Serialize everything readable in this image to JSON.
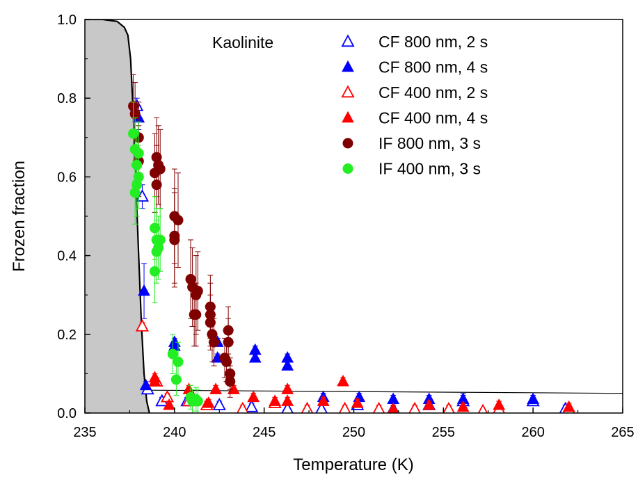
{
  "chart_data": {
    "type": "scatter",
    "xlabel": "Temperature (K)",
    "ylabel": "Frozen fraction",
    "xlim": [
      235,
      265
    ],
    "ylim": [
      0,
      1.0
    ],
    "x_ticks": [
      235,
      240,
      245,
      250,
      255,
      260,
      265
    ],
    "y_ticks": [
      0.0,
      0.2,
      0.4,
      0.6,
      0.8,
      1.0
    ],
    "x_tick_labels": [
      "235",
      "240",
      "245",
      "250",
      "255",
      "260",
      "265"
    ],
    "y_tick_labels": [
      "0.0",
      "0.2",
      "0.4",
      "0.6",
      "0.8",
      "1.0"
    ],
    "annotation": "Kaolinite",
    "legend_position": "top-right",
    "grid": false,
    "homogeneous_freezing_curve": {
      "x": [
        235.0,
        236.0,
        236.8,
        237.2,
        237.4,
        237.55,
        237.7,
        237.85,
        238.0,
        238.15,
        238.3,
        238.45,
        238.6
      ],
      "y": [
        1.0,
        1.0,
        0.995,
        0.98,
        0.96,
        0.9,
        0.76,
        0.58,
        0.4,
        0.23,
        0.1,
        0.03,
        0.0
      ],
      "fill_color": "#c8c8c8"
    },
    "background_line": {
      "x": [
        238.5,
        265
      ],
      "y": [
        0.058,
        0.05
      ]
    },
    "series": [
      {
        "name": "CF 800 nm, 2 s",
        "marker": "triangle-open",
        "color": "#0000ff",
        "points": [
          {
            "x": 237.9,
            "y": 0.78,
            "xerr": 0.15,
            "yerr": 0.02
          },
          {
            "x": 238.2,
            "y": 0.55,
            "xerr": 0.15,
            "yerr": 0.03
          },
          {
            "x": 238.5,
            "y": 0.06,
            "xerr": 0.15,
            "yerr": 0.01
          },
          {
            "x": 239.3,
            "y": 0.03,
            "xerr": 0.2,
            "yerr": 0.01
          },
          {
            "x": 240.7,
            "y": 0.03,
            "xerr": 0.2,
            "yerr": 0.01
          },
          {
            "x": 242.5,
            "y": 0.02,
            "xerr": 0.2,
            "yerr": 0.01
          },
          {
            "x": 244.3,
            "y": 0.015,
            "xerr": 0.2,
            "yerr": 0.01
          },
          {
            "x": 246.3,
            "y": 0.01,
            "xerr": 0.2,
            "yerr": 0.01
          },
          {
            "x": 248.2,
            "y": 0.01,
            "xerr": 0.2,
            "yerr": 0.01
          },
          {
            "x": 250.2,
            "y": 0.02,
            "xerr": 0.2,
            "yerr": 0.01
          },
          {
            "x": 252.2,
            "y": 0.01,
            "xerr": 0.2,
            "yerr": 0.01
          },
          {
            "x": 254.2,
            "y": 0.02,
            "xerr": 0.2,
            "yerr": 0.01
          },
          {
            "x": 256.1,
            "y": 0.03,
            "xerr": 0.2,
            "yerr": 0.02
          },
          {
            "x": 260.0,
            "y": 0.03,
            "xerr": 0.2,
            "yerr": 0.01
          },
          {
            "x": 261.8,
            "y": 0.01,
            "xerr": 0.2,
            "yerr": 0.01
          }
        ]
      },
      {
        "name": "CF 800 nm, 4 s",
        "marker": "triangle-filled",
        "color": "#0000ff",
        "points": [
          {
            "x": 238.0,
            "y": 0.75,
            "xerr": 0.15,
            "yerr": 0.03
          },
          {
            "x": 238.3,
            "y": 0.31,
            "xerr": 0.15,
            "yerr": 0.07
          },
          {
            "x": 238.4,
            "y": 0.07,
            "xerr": 0.15,
            "yerr": 0.01
          },
          {
            "x": 240.0,
            "y": 0.18,
            "xerr": 0.2,
            "yerr": 0.01
          },
          {
            "x": 240.0,
            "y": 0.17,
            "xerr": 0.2,
            "yerr": 0.01
          },
          {
            "x": 242.4,
            "y": 0.18,
            "xerr": 0.2,
            "yerr": 0.01
          },
          {
            "x": 242.4,
            "y": 0.14,
            "xerr": 0.2,
            "yerr": 0.01
          },
          {
            "x": 244.5,
            "y": 0.16,
            "xerr": 0.2,
            "yerr": 0.01
          },
          {
            "x": 244.5,
            "y": 0.14,
            "xerr": 0.2,
            "yerr": 0.01
          },
          {
            "x": 246.3,
            "y": 0.14,
            "xerr": 0.2,
            "yerr": 0.01
          },
          {
            "x": 246.3,
            "y": 0.12,
            "xerr": 0.2,
            "yerr": 0.01
          },
          {
            "x": 248.3,
            "y": 0.04,
            "xerr": 0.2,
            "yerr": 0.01
          },
          {
            "x": 250.3,
            "y": 0.04,
            "xerr": 0.2,
            "yerr": 0.01
          },
          {
            "x": 252.2,
            "y": 0.035,
            "xerr": 0.2,
            "yerr": 0.01
          },
          {
            "x": 254.2,
            "y": 0.035,
            "xerr": 0.2,
            "yerr": 0.01
          },
          {
            "x": 256.1,
            "y": 0.035,
            "xerr": 0.2,
            "yerr": 0.01
          },
          {
            "x": 260.0,
            "y": 0.035,
            "xerr": 0.2,
            "yerr": 0.01
          }
        ]
      },
      {
        "name": "CF 400 nm, 2 s",
        "marker": "triangle-open",
        "color": "#ff0000",
        "points": [
          {
            "x": 238.2,
            "y": 0.22,
            "xerr": 0.15,
            "yerr": 0.01
          },
          {
            "x": 239.0,
            "y": 0.08,
            "xerr": 0.2,
            "yerr": 0.01
          },
          {
            "x": 239.6,
            "y": 0.04,
            "xerr": 0.2,
            "yerr": 0.01
          },
          {
            "x": 240.8,
            "y": 0.03,
            "xerr": 0.2,
            "yerr": 0.01
          },
          {
            "x": 241.8,
            "y": 0.02,
            "xerr": 0.2,
            "yerr": 0.01
          },
          {
            "x": 243.8,
            "y": 0.01,
            "xerr": 0.2,
            "yerr": 0.01
          },
          {
            "x": 245.6,
            "y": 0.025,
            "xerr": 0.2,
            "yerr": 0.01
          },
          {
            "x": 247.4,
            "y": 0.01,
            "xerr": 0.2,
            "yerr": 0.01
          },
          {
            "x": 249.5,
            "y": 0.01,
            "xerr": 0.2,
            "yerr": 0.01
          },
          {
            "x": 251.4,
            "y": 0.01,
            "xerr": 0.2,
            "yerr": 0.01
          },
          {
            "x": 253.4,
            "y": 0.01,
            "xerr": 0.2,
            "yerr": 0.01
          },
          {
            "x": 255.3,
            "y": 0.01,
            "xerr": 0.2,
            "yerr": 0.01
          },
          {
            "x": 257.2,
            "y": 0.005,
            "xerr": 0.2,
            "yerr": 0.005
          },
          {
            "x": 258.1,
            "y": 0.01,
            "xerr": 0.2,
            "yerr": 0.01
          },
          {
            "x": 262.0,
            "y": 0.01,
            "xerr": 0.2,
            "yerr": 0.01
          }
        ]
      },
      {
        "name": "CF 400 nm, 4 s",
        "marker": "triangle-filled",
        "color": "#ff0000",
        "points": [
          {
            "x": 238.9,
            "y": 0.09,
            "xerr": 0.15,
            "yerr": 0.01
          },
          {
            "x": 238.9,
            "y": 0.08,
            "xerr": 0.15,
            "yerr": 0.01
          },
          {
            "x": 239.7,
            "y": 0.02,
            "xerr": 0.2,
            "yerr": 0.01
          },
          {
            "x": 240.8,
            "y": 0.06,
            "xerr": 0.2,
            "yerr": 0.01
          },
          {
            "x": 241.9,
            "y": 0.025,
            "xerr": 0.2,
            "yerr": 0.01
          },
          {
            "x": 242.3,
            "y": 0.06,
            "xerr": 0.2,
            "yerr": 0.01
          },
          {
            "x": 243.3,
            "y": 0.06,
            "xerr": 0.2,
            "yerr": 0.01
          },
          {
            "x": 244.4,
            "y": 0.04,
            "xerr": 0.2,
            "yerr": 0.01
          },
          {
            "x": 245.6,
            "y": 0.03,
            "xerr": 0.2,
            "yerr": 0.01
          },
          {
            "x": 246.3,
            "y": 0.06,
            "xerr": 0.2,
            "yerr": 0.01
          },
          {
            "x": 246.3,
            "y": 0.03,
            "xerr": 0.2,
            "yerr": 0.01
          },
          {
            "x": 248.3,
            "y": 0.03,
            "xerr": 0.2,
            "yerr": 0.01
          },
          {
            "x": 249.4,
            "y": 0.08,
            "xerr": 0.2,
            "yerr": 0.01
          },
          {
            "x": 250.2,
            "y": 0.025,
            "xerr": 0.2,
            "yerr": 0.01
          },
          {
            "x": 252.2,
            "y": 0.01,
            "xerr": 0.2,
            "yerr": 0.01
          },
          {
            "x": 254.2,
            "y": 0.02,
            "xerr": 0.2,
            "yerr": 0.01
          },
          {
            "x": 256.1,
            "y": 0.015,
            "xerr": 0.2,
            "yerr": 0.01
          },
          {
            "x": 258.1,
            "y": 0.02,
            "xerr": 0.2,
            "yerr": 0.01
          },
          {
            "x": 262.0,
            "y": 0.015,
            "xerr": 0.2,
            "yerr": 0.01
          }
        ]
      },
      {
        "name": "IF  800 nm, 3 s",
        "marker": "circle-filled",
        "color": "#800000",
        "points": [
          {
            "x": 237.7,
            "y": 0.78,
            "xerr": 0.2,
            "yerr": 0.08
          },
          {
            "x": 237.8,
            "y": 0.76,
            "xerr": 0.2,
            "yerr": 0.08
          },
          {
            "x": 238.0,
            "y": 0.7,
            "xerr": 0.2,
            "yerr": 0.09
          },
          {
            "x": 238.0,
            "y": 0.64,
            "xerr": 0.2,
            "yerr": 0.09
          },
          {
            "x": 238.9,
            "y": 0.61,
            "xerr": 0.25,
            "yerr": 0.1
          },
          {
            "x": 239.0,
            "y": 0.58,
            "xerr": 0.25,
            "yerr": 0.1
          },
          {
            "x": 239.0,
            "y": 0.65,
            "xerr": 0.25,
            "yerr": 0.1
          },
          {
            "x": 239.1,
            "y": 0.63,
            "xerr": 0.25,
            "yerr": 0.1
          },
          {
            "x": 239.2,
            "y": 0.62,
            "xerr": 0.25,
            "yerr": 0.1
          },
          {
            "x": 240.0,
            "y": 0.5,
            "xerr": 0.25,
            "yerr": 0.12
          },
          {
            "x": 240.0,
            "y": 0.45,
            "xerr": 0.25,
            "yerr": 0.12
          },
          {
            "x": 240.0,
            "y": 0.44,
            "xerr": 0.25,
            "yerr": 0.12
          },
          {
            "x": 240.2,
            "y": 0.49,
            "xerr": 0.25,
            "yerr": 0.12
          },
          {
            "x": 240.9,
            "y": 0.34,
            "xerr": 0.25,
            "yerr": 0.1
          },
          {
            "x": 241.0,
            "y": 0.32,
            "xerr": 0.25,
            "yerr": 0.1
          },
          {
            "x": 241.1,
            "y": 0.25,
            "xerr": 0.25,
            "yerr": 0.08
          },
          {
            "x": 241.2,
            "y": 0.25,
            "xerr": 0.25,
            "yerr": 0.08
          },
          {
            "x": 241.2,
            "y": 0.3,
            "xerr": 0.25,
            "yerr": 0.1
          },
          {
            "x": 241.3,
            "y": 0.31,
            "xerr": 0.25,
            "yerr": 0.1
          },
          {
            "x": 242.0,
            "y": 0.27,
            "xerr": 0.3,
            "yerr": 0.08
          },
          {
            "x": 242.0,
            "y": 0.25,
            "xerr": 0.3,
            "yerr": 0.08
          },
          {
            "x": 242.0,
            "y": 0.23,
            "xerr": 0.3,
            "yerr": 0.07
          },
          {
            "x": 242.1,
            "y": 0.2,
            "xerr": 0.3,
            "yerr": 0.07
          },
          {
            "x": 242.2,
            "y": 0.18,
            "xerr": 0.3,
            "yerr": 0.06
          },
          {
            "x": 242.8,
            "y": 0.14,
            "xerr": 0.3,
            "yerr": 0.05
          },
          {
            "x": 242.9,
            "y": 0.13,
            "xerr": 0.3,
            "yerr": 0.05
          },
          {
            "x": 243.0,
            "y": 0.21,
            "xerr": 0.3,
            "yerr": 0.06
          },
          {
            "x": 243.0,
            "y": 0.18,
            "xerr": 0.3,
            "yerr": 0.06
          },
          {
            "x": 243.1,
            "y": 0.1,
            "xerr": 0.3,
            "yerr": 0.04
          },
          {
            "x": 243.1,
            "y": 0.08,
            "xerr": 0.3,
            "yerr": 0.04
          }
        ]
      },
      {
        "name": "IF  400 nm, 3 s",
        "marker": "circle-filled",
        "color": "#22ee22",
        "points": [
          {
            "x": 237.7,
            "y": 0.71,
            "xerr": 0.15,
            "yerr": 0.08
          },
          {
            "x": 237.8,
            "y": 0.67,
            "xerr": 0.15,
            "yerr": 0.08
          },
          {
            "x": 237.9,
            "y": 0.63,
            "xerr": 0.15,
            "yerr": 0.08
          },
          {
            "x": 237.9,
            "y": 0.58,
            "xerr": 0.15,
            "yerr": 0.08
          },
          {
            "x": 237.8,
            "y": 0.56,
            "xerr": 0.15,
            "yerr": 0.08
          },
          {
            "x": 238.0,
            "y": 0.66,
            "xerr": 0.15,
            "yerr": 0.08
          },
          {
            "x": 238.0,
            "y": 0.6,
            "xerr": 0.15,
            "yerr": 0.08
          },
          {
            "x": 238.9,
            "y": 0.47,
            "xerr": 0.2,
            "yerr": 0.08
          },
          {
            "x": 239.0,
            "y": 0.44,
            "xerr": 0.2,
            "yerr": 0.08
          },
          {
            "x": 239.0,
            "y": 0.41,
            "xerr": 0.2,
            "yerr": 0.08
          },
          {
            "x": 238.9,
            "y": 0.36,
            "xerr": 0.2,
            "yerr": 0.08
          },
          {
            "x": 239.1,
            "y": 0.42,
            "xerr": 0.2,
            "yerr": 0.08
          },
          {
            "x": 239.2,
            "y": 0.44,
            "xerr": 0.2,
            "yerr": 0.08
          },
          {
            "x": 239.9,
            "y": 0.15,
            "xerr": 0.2,
            "yerr": 0.05
          },
          {
            "x": 240.2,
            "y": 0.13,
            "xerr": 0.2,
            "yerr": 0.05
          },
          {
            "x": 240.1,
            "y": 0.085,
            "xerr": 0.2,
            "yerr": 0.04
          },
          {
            "x": 240.9,
            "y": 0.04,
            "xerr": 0.2,
            "yerr": 0.03
          },
          {
            "x": 241.0,
            "y": 0.03,
            "xerr": 0.2,
            "yerr": 0.03
          },
          {
            "x": 241.2,
            "y": 0.035,
            "xerr": 0.2,
            "yerr": 0.03
          },
          {
            "x": 241.3,
            "y": 0.03,
            "xerr": 0.2,
            "yerr": 0.03
          }
        ]
      }
    ]
  }
}
